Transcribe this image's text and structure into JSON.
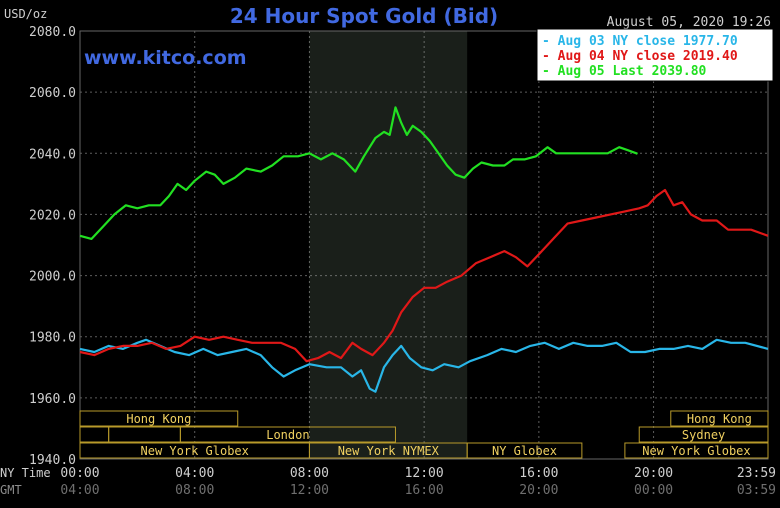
{
  "header": {
    "units": "USD/oz",
    "title": "24 Hour Spot Gold (Bid)",
    "datetime": "August 05, 2020 19:26",
    "website": "www.kitco.com"
  },
  "colors": {
    "background": "#000000",
    "plot_background": "#000000",
    "highlight_band": "#1a1f1a",
    "grid": "#aaaaaa",
    "title": "#4169e1",
    "site": "#4169e1",
    "axis_text": "#cfcfcf",
    "gmt_text": "#6f6f6f",
    "session_box": "#b89a2a",
    "session_text": "#f0d060",
    "aug03": "#29b6e8",
    "aug04": "#e01818",
    "aug05": "#22e022"
  },
  "legend": [
    {
      "label": "Aug 03 NY close 1977.70",
      "color": "#29b6e8"
    },
    {
      "label": "Aug 04 NY close 2019.40",
      "color": "#e01818"
    },
    {
      "label": "Aug 05 Last 2039.80",
      "color": "#22e022"
    }
  ],
  "time_axis": {
    "ny_label": "NY Time",
    "gmt_label": "GMT",
    "ny_ticks": [
      "00:00",
      "04:00",
      "08:00",
      "12:00",
      "16:00",
      "20:00",
      "23:59"
    ],
    "gmt_ticks": [
      "04:00",
      "08:00",
      "12:00",
      "16:00",
      "20:00",
      "00:00",
      "03:59"
    ]
  },
  "sessions": {
    "row1": [
      {
        "label": "Hong Kong",
        "start": 0.0,
        "end": 5.5
      },
      {
        "label": "Hong Kong",
        "start": 20.6,
        "end": 23.99
      }
    ],
    "row2": [
      {
        "label": "",
        "start": 0.0,
        "end": 1.0
      },
      {
        "label": "",
        "start": 1.0,
        "end": 3.5
      },
      {
        "label": "London",
        "start": 3.5,
        "end": 11.0
      },
      {
        "label": "Sydney",
        "start": 19.5,
        "end": 23.99
      }
    ],
    "row3": [
      {
        "label": "New York Globex",
        "start": 0.0,
        "end": 8.0
      },
      {
        "label": "New York NYMEX",
        "start": 8.0,
        "end": 13.5
      },
      {
        "label": "NY Globex",
        "start": 13.5,
        "end": 17.5
      },
      {
        "label": "New York Globex",
        "start": 19.0,
        "end": 23.99
      }
    ]
  },
  "chart_data": {
    "type": "line",
    "title": "24 Hour Spot Gold (Bid)",
    "ylabel": "USD/oz",
    "xlabel": "NY Time",
    "ylim": [
      1940,
      2080
    ],
    "xlim": [
      0,
      23.99
    ],
    "yticks": [
      "2080.0",
      "2060.0",
      "2040.0",
      "2020.0",
      "2000.0",
      "1980.0",
      "1960.0",
      "1940.0"
    ],
    "ytick_values": [
      2080,
      2060,
      2040,
      2020,
      2000,
      1980,
      1960,
      1940
    ],
    "xtick_hours": [
      0,
      4,
      8,
      12,
      16,
      20,
      23.99
    ],
    "highlight_hours": [
      8.0,
      13.5
    ],
    "grid": true,
    "legend_position": "top-right",
    "series": [
      {
        "name": "Aug 03 NY close 1977.70",
        "color": "#29b6e8",
        "points": [
          [
            0,
            1976
          ],
          [
            0.5,
            1975
          ],
          [
            1,
            1977
          ],
          [
            1.5,
            1976
          ],
          [
            2,
            1978
          ],
          [
            2.3,
            1979
          ],
          [
            2.8,
            1977
          ],
          [
            3.3,
            1975
          ],
          [
            3.8,
            1974
          ],
          [
            4.3,
            1976
          ],
          [
            4.8,
            1974
          ],
          [
            5.3,
            1975
          ],
          [
            5.8,
            1976
          ],
          [
            6.3,
            1974
          ],
          [
            6.7,
            1970
          ],
          [
            7.1,
            1967
          ],
          [
            7.5,
            1969
          ],
          [
            8,
            1971
          ],
          [
            8.6,
            1970
          ],
          [
            9.1,
            1970
          ],
          [
            9.5,
            1967
          ],
          [
            9.8,
            1969
          ],
          [
            10.1,
            1963
          ],
          [
            10.3,
            1962
          ],
          [
            10.6,
            1970
          ],
          [
            10.9,
            1974
          ],
          [
            11.2,
            1977
          ],
          [
            11.5,
            1973
          ],
          [
            11.9,
            1970
          ],
          [
            12.3,
            1969
          ],
          [
            12.7,
            1971
          ],
          [
            13.2,
            1970
          ],
          [
            13.6,
            1972
          ],
          [
            14.2,
            1974
          ],
          [
            14.7,
            1976
          ],
          [
            15.2,
            1975
          ],
          [
            15.7,
            1977
          ],
          [
            16.2,
            1978
          ],
          [
            16.7,
            1976
          ],
          [
            17.2,
            1978
          ],
          [
            17.7,
            1977
          ],
          [
            18.2,
            1977
          ],
          [
            18.7,
            1978
          ],
          [
            19.2,
            1975
          ],
          [
            19.7,
            1975
          ],
          [
            20.2,
            1976
          ],
          [
            20.7,
            1976
          ],
          [
            21.2,
            1977
          ],
          [
            21.7,
            1976
          ],
          [
            22.2,
            1979
          ],
          [
            22.7,
            1978
          ],
          [
            23.2,
            1978
          ],
          [
            23.99,
            1976
          ]
        ]
      },
      {
        "name": "Aug 04 NY close 2019.40",
        "color": "#e01818",
        "points": [
          [
            0,
            1975
          ],
          [
            0.5,
            1974
          ],
          [
            1,
            1976
          ],
          [
            1.5,
            1977
          ],
          [
            2,
            1977
          ],
          [
            2.5,
            1978
          ],
          [
            3,
            1976
          ],
          [
            3.5,
            1977
          ],
          [
            4,
            1980
          ],
          [
            4.5,
            1979
          ],
          [
            5,
            1980
          ],
          [
            5.5,
            1979
          ],
          [
            6,
            1978
          ],
          [
            6.5,
            1978
          ],
          [
            7,
            1978
          ],
          [
            7.5,
            1976
          ],
          [
            7.9,
            1972
          ],
          [
            8.3,
            1973
          ],
          [
            8.7,
            1975
          ],
          [
            9.1,
            1973
          ],
          [
            9.5,
            1978
          ],
          [
            9.8,
            1976
          ],
          [
            10.2,
            1974
          ],
          [
            10.6,
            1978
          ],
          [
            10.9,
            1982
          ],
          [
            11.2,
            1988
          ],
          [
            11.6,
            1993
          ],
          [
            12,
            1996
          ],
          [
            12.4,
            1996
          ],
          [
            12.8,
            1998
          ],
          [
            13.3,
            2000
          ],
          [
            13.8,
            2004
          ],
          [
            14.3,
            2006
          ],
          [
            14.8,
            2008
          ],
          [
            15.2,
            2006
          ],
          [
            15.6,
            2003
          ],
          [
            16,
            2007
          ],
          [
            16.5,
            2012
          ],
          [
            17,
            2017
          ],
          [
            17.5,
            2018
          ],
          [
            18,
            2019
          ],
          [
            18.5,
            2020
          ],
          [
            19,
            2021
          ],
          [
            19.5,
            2022
          ],
          [
            19.8,
            2023
          ],
          [
            20.1,
            2026
          ],
          [
            20.4,
            2028
          ],
          [
            20.7,
            2023
          ],
          [
            21,
            2024
          ],
          [
            21.3,
            2020
          ],
          [
            21.7,
            2018
          ],
          [
            22.2,
            2018
          ],
          [
            22.6,
            2015
          ],
          [
            23,
            2015
          ],
          [
            23.4,
            2015
          ],
          [
            23.99,
            2013
          ]
        ]
      },
      {
        "name": "Aug 05 Last 2039.80",
        "color": "#22e022",
        "points": [
          [
            0,
            2013
          ],
          [
            0.4,
            2012
          ],
          [
            0.8,
            2016
          ],
          [
            1.2,
            2020
          ],
          [
            1.6,
            2023
          ],
          [
            2,
            2022
          ],
          [
            2.4,
            2023
          ],
          [
            2.8,
            2023
          ],
          [
            3.1,
            2026
          ],
          [
            3.4,
            2030
          ],
          [
            3.7,
            2028
          ],
          [
            4,
            2031
          ],
          [
            4.4,
            2034
          ],
          [
            4.7,
            2033
          ],
          [
            5,
            2030
          ],
          [
            5.4,
            2032
          ],
          [
            5.8,
            2035
          ],
          [
            6.3,
            2034
          ],
          [
            6.7,
            2036
          ],
          [
            7.1,
            2039
          ],
          [
            7.6,
            2039
          ],
          [
            8,
            2040
          ],
          [
            8.4,
            2038
          ],
          [
            8.8,
            2040
          ],
          [
            9.2,
            2038
          ],
          [
            9.6,
            2034
          ],
          [
            9.9,
            2039
          ],
          [
            10.3,
            2045
          ],
          [
            10.6,
            2047
          ],
          [
            10.8,
            2046
          ],
          [
            11,
            2055
          ],
          [
            11.2,
            2050
          ],
          [
            11.4,
            2046
          ],
          [
            11.6,
            2049
          ],
          [
            11.9,
            2047
          ],
          [
            12.2,
            2044
          ],
          [
            12.5,
            2040
          ],
          [
            12.8,
            2036
          ],
          [
            13.1,
            2033
          ],
          [
            13.4,
            2032
          ],
          [
            13.7,
            2035
          ],
          [
            14,
            2037
          ],
          [
            14.4,
            2036
          ],
          [
            14.8,
            2036
          ],
          [
            15.1,
            2038
          ],
          [
            15.5,
            2038
          ],
          [
            15.9,
            2039
          ],
          [
            16.3,
            2042
          ],
          [
            16.6,
            2040
          ],
          [
            17,
            2040
          ],
          [
            17.5,
            2040
          ],
          [
            18,
            2040
          ],
          [
            18.4,
            2040
          ],
          [
            18.8,
            2042
          ],
          [
            19.1,
            2041
          ],
          [
            19.4,
            2040
          ],
          [
            19.44,
            2039.8
          ]
        ]
      }
    ]
  }
}
